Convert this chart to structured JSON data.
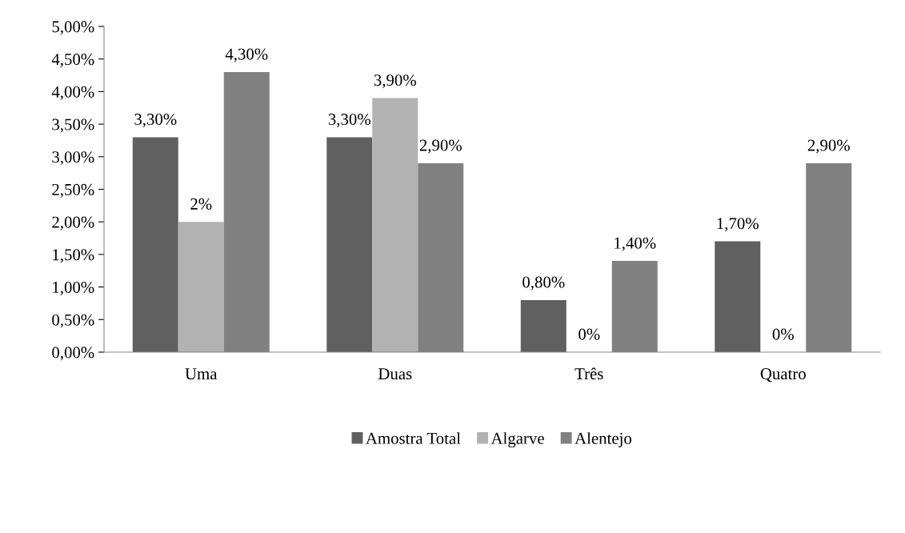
{
  "chart_data": {
    "type": "bar",
    "categories": [
      "Uma",
      "Duas",
      "Três",
      "Quatro"
    ],
    "series": [
      {
        "name": "Amostra Total",
        "color": "#606060",
        "values": [
          3.3,
          3.3,
          0.8,
          1.7
        ],
        "value_labels": [
          "3,30%",
          "3,30%",
          "0,80%",
          "1,70%"
        ]
      },
      {
        "name": "Algarve",
        "color": "#b2b2b2",
        "values": [
          2,
          3.9,
          0,
          0
        ],
        "value_labels": [
          "2%",
          "3,90%",
          "0%",
          "0%"
        ]
      },
      {
        "name": "Alentejo",
        "color": "#808080",
        "values": [
          4.3,
          2.9,
          1.4,
          2.9
        ],
        "value_labels": [
          "4,30%",
          "2,90%",
          "1,40%",
          "2,90%"
        ]
      }
    ],
    "ylim": [
      0,
      5
    ],
    "yticks": [
      {
        "value": 0,
        "label": "0,00%"
      },
      {
        "value": 0.5,
        "label": "0,50%"
      },
      {
        "value": 1,
        "label": "1,00%"
      },
      {
        "value": 1.5,
        "label": "1,50%"
      },
      {
        "value": 2,
        "label": "2,00%"
      },
      {
        "value": 2.5,
        "label": "2,50%"
      },
      {
        "value": 3,
        "label": "3,00%"
      },
      {
        "value": 3.5,
        "label": "3,50%"
      },
      {
        "value": 4,
        "label": "4,00%"
      },
      {
        "value": 4.5,
        "label": "4,50%"
      },
      {
        "value": 5,
        "label": "5,00%"
      }
    ],
    "grid": false,
    "legend": "bottom"
  }
}
